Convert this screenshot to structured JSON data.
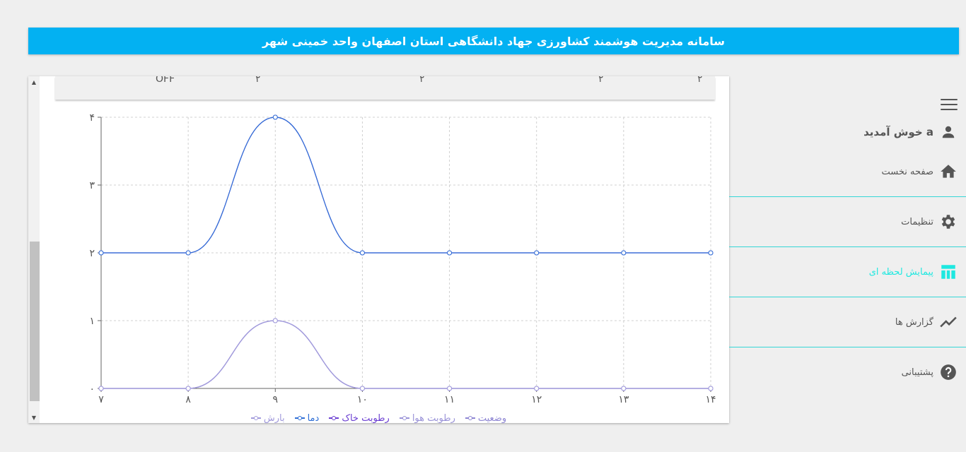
{
  "header": {
    "title": "سامانه مدیریت هوشمند کشاورزی جهاد دانشگاهی استان اصفهان واحد خمینی شهر"
  },
  "table_strip": {
    "cells": [
      "OFF",
      "۲",
      "۲",
      "۲",
      "۲"
    ]
  },
  "chart_data": {
    "type": "line",
    "x": [
      7,
      8,
      9,
      10,
      11,
      12,
      13,
      14
    ],
    "x_tick_labels": [
      "۷",
      "۸",
      "۹",
      "۱۰",
      "۱۱",
      "۱۲",
      "۱۳",
      "۱۴"
    ],
    "y_tick_labels": [
      "۰",
      "۱",
      "۲",
      "۳",
      "۴"
    ],
    "ylim": [
      0,
      4
    ],
    "xlim": [
      7,
      14
    ],
    "grid": true,
    "legend_position": "bottom",
    "series": [
      {
        "name": "وضعیت",
        "values": [
          0,
          0,
          1,
          0,
          0,
          0,
          0,
          0
        ],
        "color": "#8e86d3"
      },
      {
        "name": "رطوبت هوا",
        "values": [
          0,
          0,
          1,
          0,
          0,
          0,
          0,
          0
        ],
        "color": "#9a93d8"
      },
      {
        "name": "رطوبت خاک",
        "values": [
          2,
          2,
          4,
          2,
          2,
          2,
          2,
          2
        ],
        "color": "#6b3fd2"
      },
      {
        "name": "دما",
        "values": [
          2,
          2,
          4,
          2,
          2,
          2,
          2,
          2
        ],
        "color": "#2f6fd6"
      },
      {
        "name": "بارش",
        "values": [
          0,
          0,
          1,
          0,
          0,
          0,
          0,
          0
        ],
        "color": "#a29bdc"
      }
    ]
  },
  "sidebar": {
    "welcome": "a خوش آمدید",
    "items": [
      {
        "label": "صفحه نخست",
        "icon": "home-icon"
      },
      {
        "label": "تنظیمات",
        "icon": "gear-icon"
      },
      {
        "label": "پیمایش لحظه ای",
        "icon": "table-icon",
        "active": true
      },
      {
        "label": "گزارش ها",
        "icon": "trending-icon"
      },
      {
        "label": "پشتیبانی",
        "icon": "help-icon"
      }
    ],
    "active_color": "#1ee8e0"
  }
}
